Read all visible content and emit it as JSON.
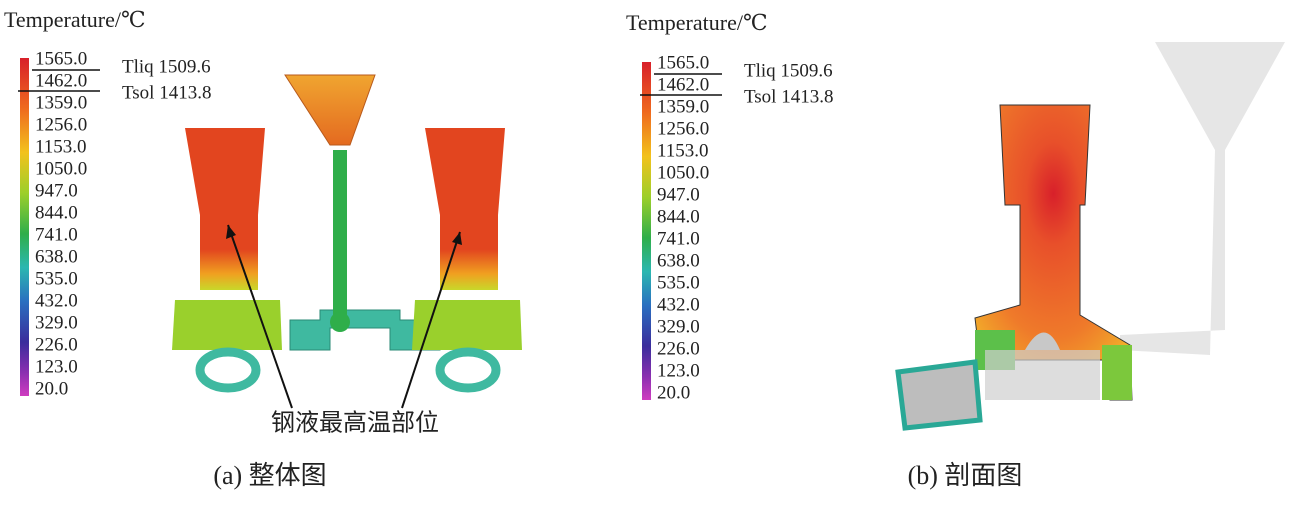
{
  "panels": [
    {
      "legend": {
        "title": "Temperature/℃",
        "ticks": [
          "1565.0",
          "1462.0",
          "1359.0",
          "1256.0",
          "1153.0",
          "1050.0",
          "947.0",
          "844.0",
          "741.0",
          "638.0",
          "535.0",
          "432.0",
          "329.0",
          "226.0",
          "123.0",
          "20.0"
        ],
        "liquidus": "Tliq 1509.6",
        "solidus": "Tsol 1413.8"
      },
      "annotation": "钢液最高温部位",
      "caption": "(a) 整体图"
    },
    {
      "legend": {
        "title": "Temperature/℃",
        "ticks": [
          "1565.0",
          "1462.0",
          "1359.0",
          "1256.0",
          "1153.0",
          "1050.0",
          "947.0",
          "844.0",
          "741.0",
          "638.0",
          "535.0",
          "432.0",
          "329.0",
          "226.0",
          "123.0",
          "20.0"
        ],
        "liquidus": "Tliq 1509.6",
        "solidus": "Tsol 1413.8"
      },
      "caption": "(b) 剖面图"
    }
  ]
}
